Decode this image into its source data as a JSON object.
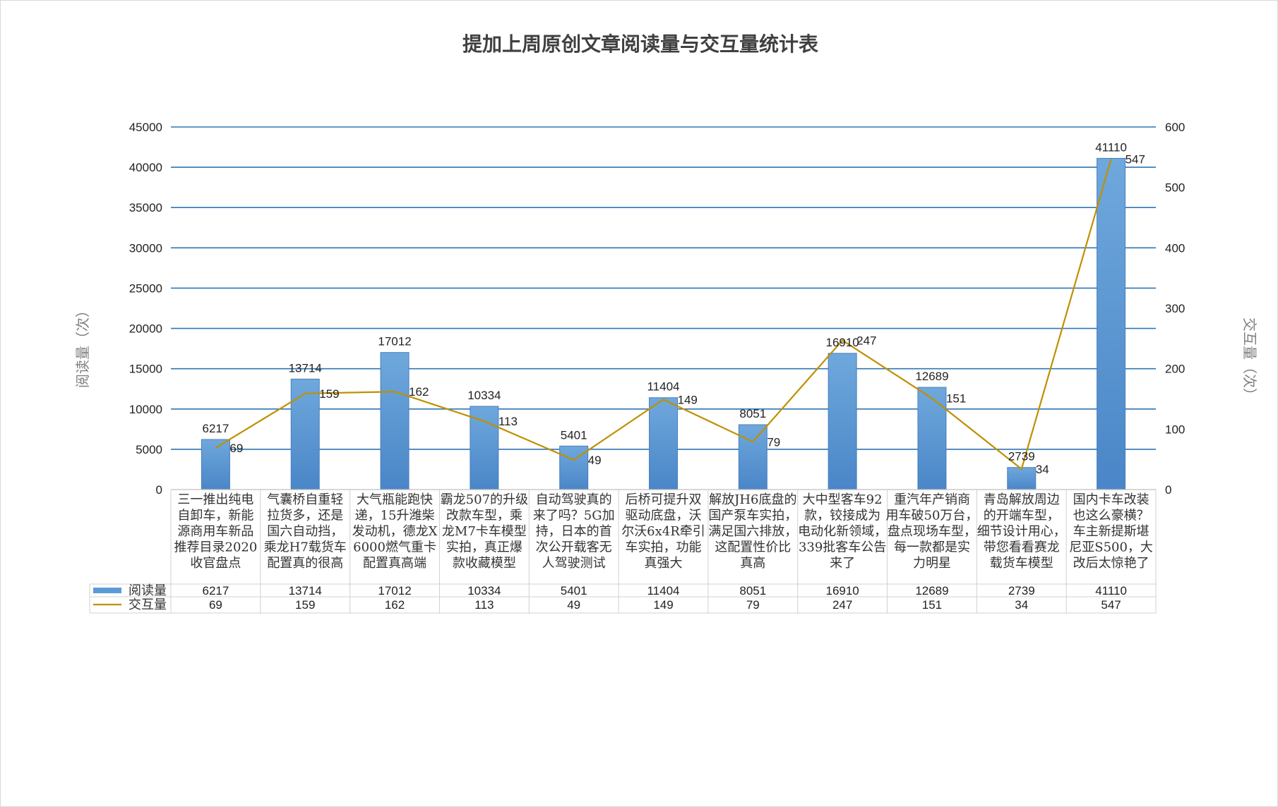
{
  "chart_data": {
    "type": "bar",
    "title": "提加上周原创文章阅读量与交互量统计表",
    "ylabel": "阅读量（次）",
    "y2label": "交互量（次）",
    "ylim": [
      0,
      45000
    ],
    "y2lim": [
      0,
      600
    ],
    "yticks": [
      "0",
      "5000",
      "10000",
      "15000",
      "20000",
      "25000",
      "30000",
      "35000",
      "40000",
      "45000"
    ],
    "y2ticks": [
      "0",
      "100",
      "200",
      "300",
      "400",
      "500",
      "600"
    ],
    "grid": true,
    "legend": "data-table",
    "categories": [
      [
        "三一推出纯电",
        "自卸车，新能",
        "源商用车新品",
        "推荐目录2020",
        "收官盘点"
      ],
      [
        "气囊桥自重轻",
        "拉货多，还是",
        "国六自动挡，",
        "乘龙H7载货车",
        "配置真的很高"
      ],
      [
        "大气瓶能跑快",
        "递，15升潍柴",
        "发动机，德龙X",
        "6000燃气重卡",
        "配置真高端"
      ],
      [
        "霸龙507的升级",
        "改款车型，乘",
        "龙M7卡车模型",
        "实拍，真正爆",
        "款收藏模型"
      ],
      [
        "自动驾驶真的",
        "来了吗？5G加",
        "持，日本的首",
        "次公开载客无",
        "人驾驶测试"
      ],
      [
        "后桥可提升双",
        "驱动底盘，沃",
        "尔沃6x4R牵引",
        "车实拍，功能",
        "真强大"
      ],
      [
        "解放JH6底盘的",
        "国产泵车实拍，",
        "满足国六排放，",
        "这配置性价比",
        "真高"
      ],
      [
        "大中型客车92",
        "款，铰接成为",
        "电动化新领域，",
        "339批客车公告",
        "来了"
      ],
      [
        "重汽年产销商",
        "用车破50万台，",
        "盘点现场车型，",
        "每一款都是实",
        "力明星"
      ],
      [
        "青岛解放周边",
        "的开端车型，",
        "细节设计用心，",
        "带您看看赛龙",
        "载货车模型"
      ],
      [
        "国内卡车改装",
        "也这么豪横？",
        "车主新提斯堪",
        "尼亚S500，大",
        "改后太惊艳了"
      ]
    ],
    "series": [
      {
        "name": "阅读量",
        "type": "bar",
        "axis": "left",
        "color": "#5b9bd5",
        "values": [
          6217,
          13714,
          17012,
          10334,
          5401,
          11404,
          8051,
          16910,
          12689,
          2739,
          41110
        ]
      },
      {
        "name": "交互量",
        "type": "line",
        "axis": "right",
        "color": "#bf9000",
        "values": [
          69,
          159,
          162,
          113,
          49,
          149,
          79,
          247,
          151,
          34,
          547
        ]
      }
    ]
  }
}
